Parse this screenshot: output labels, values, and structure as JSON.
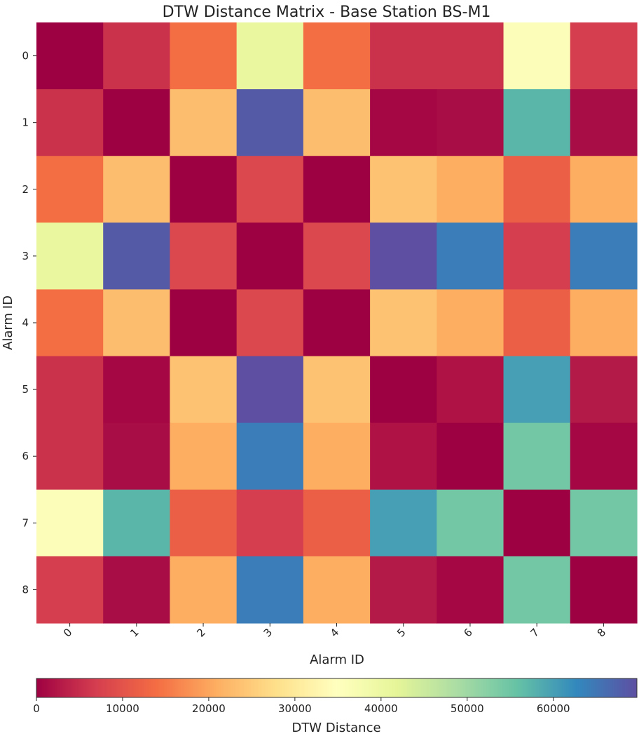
{
  "chart_data": {
    "type": "heatmap",
    "title": "DTW Distance Matrix - Base Station BS-M1",
    "xlabel": "Alarm ID",
    "ylabel": "Alarm ID",
    "x_categories": [
      "0",
      "1",
      "2",
      "3",
      "4",
      "5",
      "6",
      "7",
      "8"
    ],
    "y_categories": [
      "0",
      "1",
      "2",
      "3",
      "4",
      "5",
      "6",
      "7",
      "8"
    ],
    "colormap": "Spectral_r",
    "colormap_stops": [
      "#9e0142",
      "#d53e4f",
      "#f46d43",
      "#fdae61",
      "#fee08b",
      "#ffffbf",
      "#e6f598",
      "#abdda4",
      "#66c2a5",
      "#3288bd",
      "#5e4fa2"
    ],
    "vmin": 0,
    "vmax": 69700,
    "values": [
      [
        0,
        5600,
        14000,
        40500,
        14000,
        5600,
        5600,
        36000,
        7000
      ],
      [
        5600,
        0,
        23000,
        68300,
        23000,
        700,
        1400,
        57200,
        1400
      ],
      [
        14000,
        23000,
        0,
        8400,
        0,
        23700,
        20900,
        11900,
        20900
      ],
      [
        40500,
        68300,
        8400,
        0,
        8400,
        69700,
        64100,
        7000,
        64100
      ],
      [
        14000,
        23000,
        0,
        8400,
        0,
        23700,
        20900,
        11900,
        20900
      ],
      [
        5600,
        700,
        23700,
        69700,
        23700,
        0,
        2100,
        60000,
        2800
      ],
      [
        5600,
        1400,
        20900,
        64100,
        20900,
        2100,
        0,
        54400,
        700
      ],
      [
        36000,
        57200,
        11900,
        7000,
        11900,
        60000,
        54400,
        0,
        54400
      ],
      [
        7000,
        1400,
        20900,
        64100,
        20900,
        2800,
        700,
        54400,
        0
      ]
    ],
    "colorbar": {
      "label": "DTW Distance",
      "ticks": [
        0,
        10000,
        20000,
        30000,
        40000,
        50000,
        60000
      ],
      "tick_labels": [
        "0",
        "10000",
        "20000",
        "30000",
        "40000",
        "50000",
        "60000"
      ],
      "orientation": "horizontal",
      "placement": "bottom"
    }
  }
}
